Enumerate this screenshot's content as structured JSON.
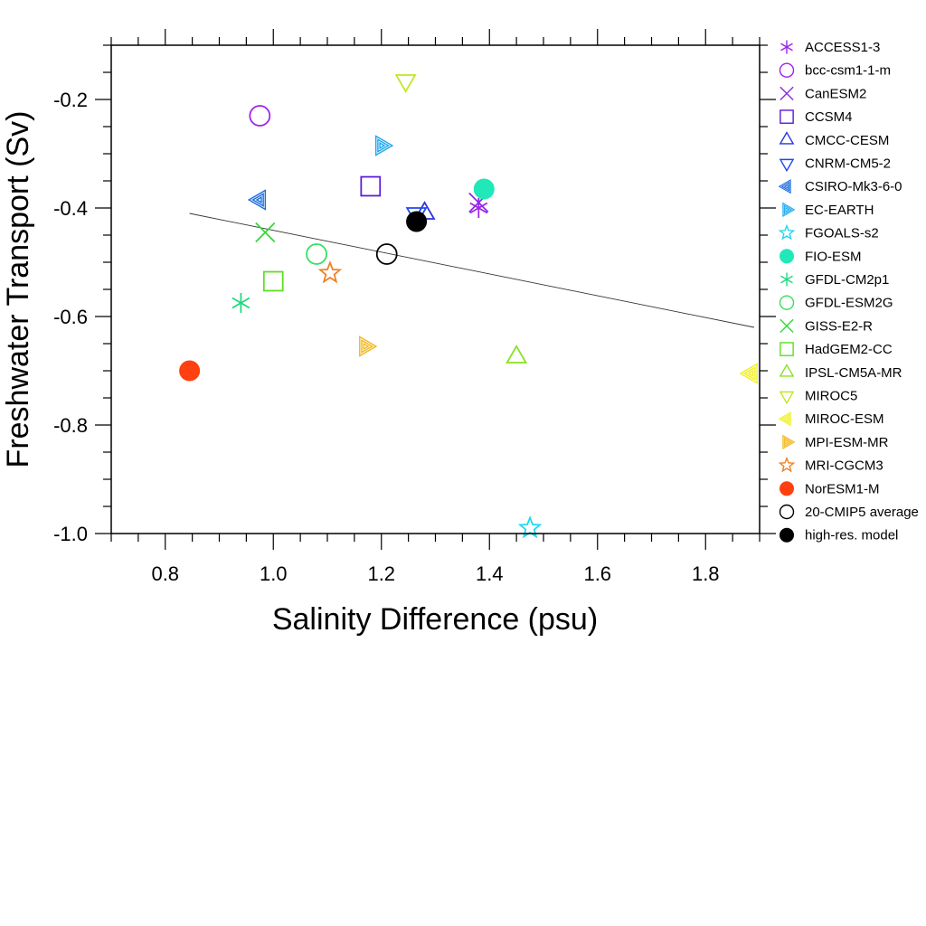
{
  "chart_data": {
    "type": "scatter",
    "xlabel": "Salinity Difference (psu)",
    "ylabel": "Freshwater Transport (Sv)",
    "xlim": [
      0.7,
      1.9
    ],
    "ylim": [
      -1.0,
      -0.1
    ],
    "xticks": [
      0.8,
      1.0,
      1.2,
      1.4,
      1.6,
      1.8
    ],
    "xtick_labels": [
      "0.8",
      "1.0",
      "1.2",
      "1.4",
      "1.6",
      "1.8"
    ],
    "yticks": [
      -0.2,
      -0.4,
      -0.6,
      -0.8,
      -1.0
    ],
    "ytick_labels": [
      "-0.2",
      "-0.4",
      "-0.6",
      "-0.8",
      "-1.0"
    ],
    "grid": false,
    "legend_position": "right-outside",
    "regression_line": {
      "x": [
        0.845,
        1.89
      ],
      "y": [
        -0.41,
        -0.62
      ]
    },
    "series": [
      {
        "name": "ACCESS1-3",
        "marker": "asterisk",
        "color": "#a020f0",
        "x": 1.38,
        "y": -0.4
      },
      {
        "name": "bcc-csm1-1-m",
        "marker": "circle",
        "color": "#a020f0",
        "x": 0.975,
        "y": -0.23
      },
      {
        "name": "CanESM2",
        "marker": "cross",
        "color": "#8a2be2",
        "x": 1.38,
        "y": -0.39
      },
      {
        "name": "CCSM4",
        "marker": "square",
        "color": "#5a1ad8",
        "x": 1.18,
        "y": -0.36
      },
      {
        "name": "CMCC-CESM",
        "marker": "triangle-up",
        "color": "#2a33e0",
        "x": 1.28,
        "y": -0.41
      },
      {
        "name": "CNRM-CM5-2",
        "marker": "triangle-down",
        "color": "#1f4ae8",
        "x": 1.265,
        "y": -0.41
      },
      {
        "name": "CSIRO-Mk3-6-0",
        "marker": "triangle-left",
        "color": "#1e6fe0",
        "x": 0.975,
        "y": -0.385
      },
      {
        "name": "EC-EARTH",
        "marker": "triangle-right",
        "color": "#1ea8f0",
        "x": 1.2,
        "y": -0.285
      },
      {
        "name": "FGOALS-s2",
        "marker": "star",
        "color": "#20d8f0",
        "x": 1.475,
        "y": -0.99
      },
      {
        "name": "FIO-ESM",
        "marker": "filled-circle",
        "color": "#20e8b8",
        "x": 1.39,
        "y": -0.365
      },
      {
        "name": "GFDL-CM2p1",
        "marker": "asterisk",
        "color": "#20d880",
        "x": 0.94,
        "y": -0.575
      },
      {
        "name": "GFDL-ESM2G",
        "marker": "circle",
        "color": "#33e060",
        "x": 1.08,
        "y": -0.485
      },
      {
        "name": "GISS-E2-R",
        "marker": "cross",
        "color": "#33d833",
        "x": 0.985,
        "y": -0.445
      },
      {
        "name": "HadGEM2-CC",
        "marker": "square",
        "color": "#5ae020",
        "x": 1.0,
        "y": -0.535
      },
      {
        "name": "IPSL-CM5A-MR",
        "marker": "triangle-up",
        "color": "#8ae020",
        "x": 1.45,
        "y": -0.675
      },
      {
        "name": "MIROC5",
        "marker": "triangle-down",
        "color": "#c0e820",
        "x": 1.245,
        "y": -0.165
      },
      {
        "name": "MIROC-ESM",
        "marker": "triangle-left",
        "color": "#f0f020",
        "x": 1.885,
        "y": -0.705
      },
      {
        "name": "MPI-ESM-MR",
        "marker": "triangle-right",
        "color": "#f0b820",
        "x": 1.17,
        "y": -0.655
      },
      {
        "name": "MRI-CGCM3",
        "marker": "star",
        "color": "#f08020",
        "x": 1.105,
        "y": -0.52
      },
      {
        "name": "NorESM1-M",
        "marker": "filled-circle",
        "color": "#ff4010",
        "x": 0.845,
        "y": -0.7
      },
      {
        "name": "20-CMIP5 average",
        "marker": "circle",
        "color": "#000000",
        "x": 1.21,
        "y": -0.485
      },
      {
        "name": "high-res. model",
        "marker": "filled-circle",
        "color": "#000000",
        "x": 1.265,
        "y": -0.425
      }
    ]
  }
}
